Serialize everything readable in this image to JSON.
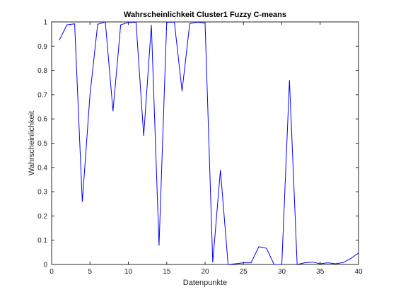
{
  "chart_data": {
    "type": "line",
    "title": "Wahrscheinlichkeit Cluster1 Fuzzy C-means",
    "xlabel": "Datenpunkte",
    "ylabel": "Wahrscheinlichkeit",
    "xlim": [
      0,
      40
    ],
    "ylim": [
      0,
      1
    ],
    "grid": false,
    "legend": "none",
    "line_color": "#0000ff",
    "axes_color": "#262626",
    "x_ticks": [
      "0",
      "5",
      "10",
      "15",
      "20",
      "25",
      "30",
      "35",
      "40"
    ],
    "y_ticks": [
      "0",
      "0.1",
      "0.2",
      "0.3",
      "0.4",
      "0.5",
      "0.6",
      "0.7",
      "0.8",
      "0.9",
      "1"
    ],
    "series": [
      {
        "x": [
          1,
          2,
          3,
          4,
          5,
          6,
          7,
          8,
          9,
          10,
          11,
          12,
          13,
          14,
          15,
          16,
          17,
          18,
          19,
          20,
          21,
          22,
          23,
          24,
          25,
          26,
          27,
          28,
          29,
          30,
          31,
          32,
          33,
          34,
          35,
          36,
          37,
          38,
          39,
          40
        ],
        "y": [
          0.925,
          0.988,
          0.992,
          0.258,
          0.7,
          0.99,
          1.0,
          0.632,
          0.988,
          0.998,
          0.999,
          0.53,
          0.988,
          0.078,
          0.999,
          0.999,
          0.715,
          0.993,
          0.999,
          0.995,
          0.008,
          0.39,
          0.0,
          0.003,
          0.007,
          0.007,
          0.073,
          0.067,
          0.0,
          0.0,
          0.76,
          0.0,
          0.007,
          0.01,
          0.003,
          0.007,
          0.003,
          0.008,
          0.025,
          0.047
        ]
      }
    ]
  }
}
